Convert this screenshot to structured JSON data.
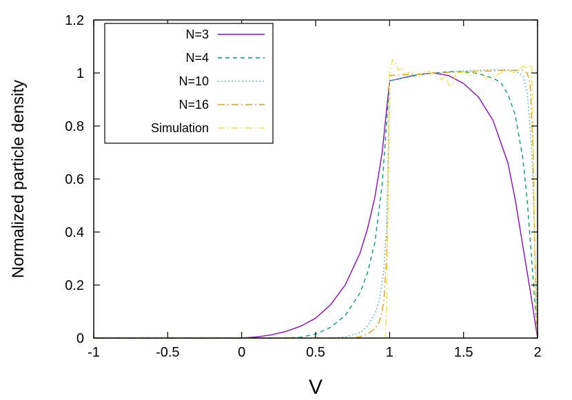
{
  "chart_data": {
    "type": "line",
    "xlabel": "V",
    "ylabel": "Normalized particle density",
    "xlim": [
      -1,
      2
    ],
    "ylim": [
      0,
      1.2
    ],
    "xticks": [
      -1,
      -0.5,
      0,
      0.5,
      1,
      1.5,
      2
    ],
    "yticks": [
      0,
      0.2,
      0.4,
      0.6,
      0.8,
      1,
      1.2
    ],
    "xtick_labels": [
      "-1",
      "-0.5",
      "0",
      "0.5",
      "1",
      "1.5",
      "2"
    ],
    "ytick_labels": [
      "0",
      "0.2",
      "0.4",
      "0.6",
      "0.8",
      "1",
      "1.2"
    ],
    "grid": false,
    "legend_position": "top-left",
    "series": [
      {
        "name": "N=3",
        "color": "#9400D3",
        "dash": "solid",
        "x": [
          -1,
          0,
          0.1,
          0.2,
          0.3,
          0.4,
          0.5,
          0.6,
          0.7,
          0.8,
          0.85,
          0.9,
          0.95,
          1.0,
          1.1,
          1.2,
          1.3,
          1.4,
          1.5,
          1.6,
          1.7,
          1.8,
          1.85,
          1.9,
          1.95,
          2.0
        ],
        "y": [
          0,
          0,
          0.004,
          0.012,
          0.025,
          0.045,
          0.075,
          0.125,
          0.2,
          0.32,
          0.41,
          0.53,
          0.7,
          0.97,
          0.983,
          0.995,
          1.0,
          0.99,
          0.96,
          0.91,
          0.82,
          0.66,
          0.52,
          0.35,
          0.18,
          0.0
        ]
      },
      {
        "name": "N=4",
        "color": "#009E73",
        "dash": "6,5",
        "x": [
          -1,
          0.3,
          0.4,
          0.5,
          0.6,
          0.7,
          0.8,
          0.85,
          0.9,
          0.95,
          1.0,
          1.1,
          1.2,
          1.3,
          1.4,
          1.5,
          1.6,
          1.7,
          1.75,
          1.8,
          1.85,
          1.9,
          1.93,
          1.96,
          2.0
        ],
        "y": [
          0,
          0,
          0.003,
          0.015,
          0.04,
          0.085,
          0.17,
          0.245,
          0.36,
          0.58,
          0.97,
          0.982,
          0.993,
          1.0,
          1.005,
          1.005,
          0.998,
          0.98,
          0.965,
          0.92,
          0.84,
          0.68,
          0.52,
          0.3,
          0.0
        ]
      },
      {
        "name": "N=10",
        "color": "#56B4E9",
        "dash": "2,3",
        "x": [
          -1,
          0.6,
          0.7,
          0.8,
          0.85,
          0.9,
          0.93,
          0.96,
          0.98,
          1.0,
          1.1,
          1.2,
          1.3,
          1.4,
          1.5,
          1.6,
          1.7,
          1.8,
          1.85,
          1.9,
          1.93,
          1.96,
          1.98,
          2.0
        ],
        "y": [
          0,
          0,
          0.004,
          0.02,
          0.045,
          0.09,
          0.14,
          0.25,
          0.42,
          0.97,
          0.985,
          0.995,
          1.0,
          1.005,
          1.008,
          1.01,
          1.012,
          1.012,
          1.008,
          0.99,
          0.93,
          0.72,
          0.4,
          0.0
        ]
      },
      {
        "name": "N=16",
        "color": "#E69F00",
        "dash": "10,4,2,4",
        "x": [
          -1,
          0.75,
          0.8,
          0.85,
          0.9,
          0.93,
          0.96,
          0.98,
          0.99,
          1.0,
          1.1,
          1.2,
          1.3,
          1.4,
          1.5,
          1.6,
          1.7,
          1.8,
          1.9,
          1.93,
          1.95,
          1.97,
          1.98,
          1.99,
          2.0
        ],
        "y": [
          0,
          0,
          0.005,
          0.015,
          0.035,
          0.06,
          0.13,
          0.3,
          0.55,
          0.99,
          0.993,
          0.996,
          1.0,
          1.002,
          1.004,
          1.006,
          1.008,
          1.01,
          1.01,
          1.0,
          0.96,
          0.7,
          0.35,
          0.1,
          0.0
        ]
      },
      {
        "name": "Simulation",
        "color": "#F0E442",
        "dash": "10,4,2,4",
        "x": [
          -1,
          0.97,
          0.98,
          0.99,
          1.0,
          1.02,
          1.04,
          1.06,
          1.08,
          1.1,
          1.15,
          1.2,
          1.25,
          1.3,
          1.35,
          1.38,
          1.4,
          1.42,
          1.45,
          1.5,
          1.55,
          1.6,
          1.65,
          1.7,
          1.75,
          1.8,
          1.85,
          1.9,
          1.93,
          1.96,
          1.97,
          1.98,
          1.99,
          2.0
        ],
        "y": [
          0,
          0,
          0.1,
          0.6,
          1.0,
          1.05,
          1.035,
          1.01,
          1.02,
          0.995,
          1.005,
          0.99,
          1.01,
          0.995,
          0.975,
          0.99,
          0.955,
          0.95,
          1.0,
          1.005,
          0.99,
          1.01,
          0.98,
          0.985,
          1.0,
          1.01,
          1.0,
          1.025,
          1.02,
          1.03,
          0.8,
          0.4,
          0.1,
          0.0
        ]
      }
    ]
  }
}
